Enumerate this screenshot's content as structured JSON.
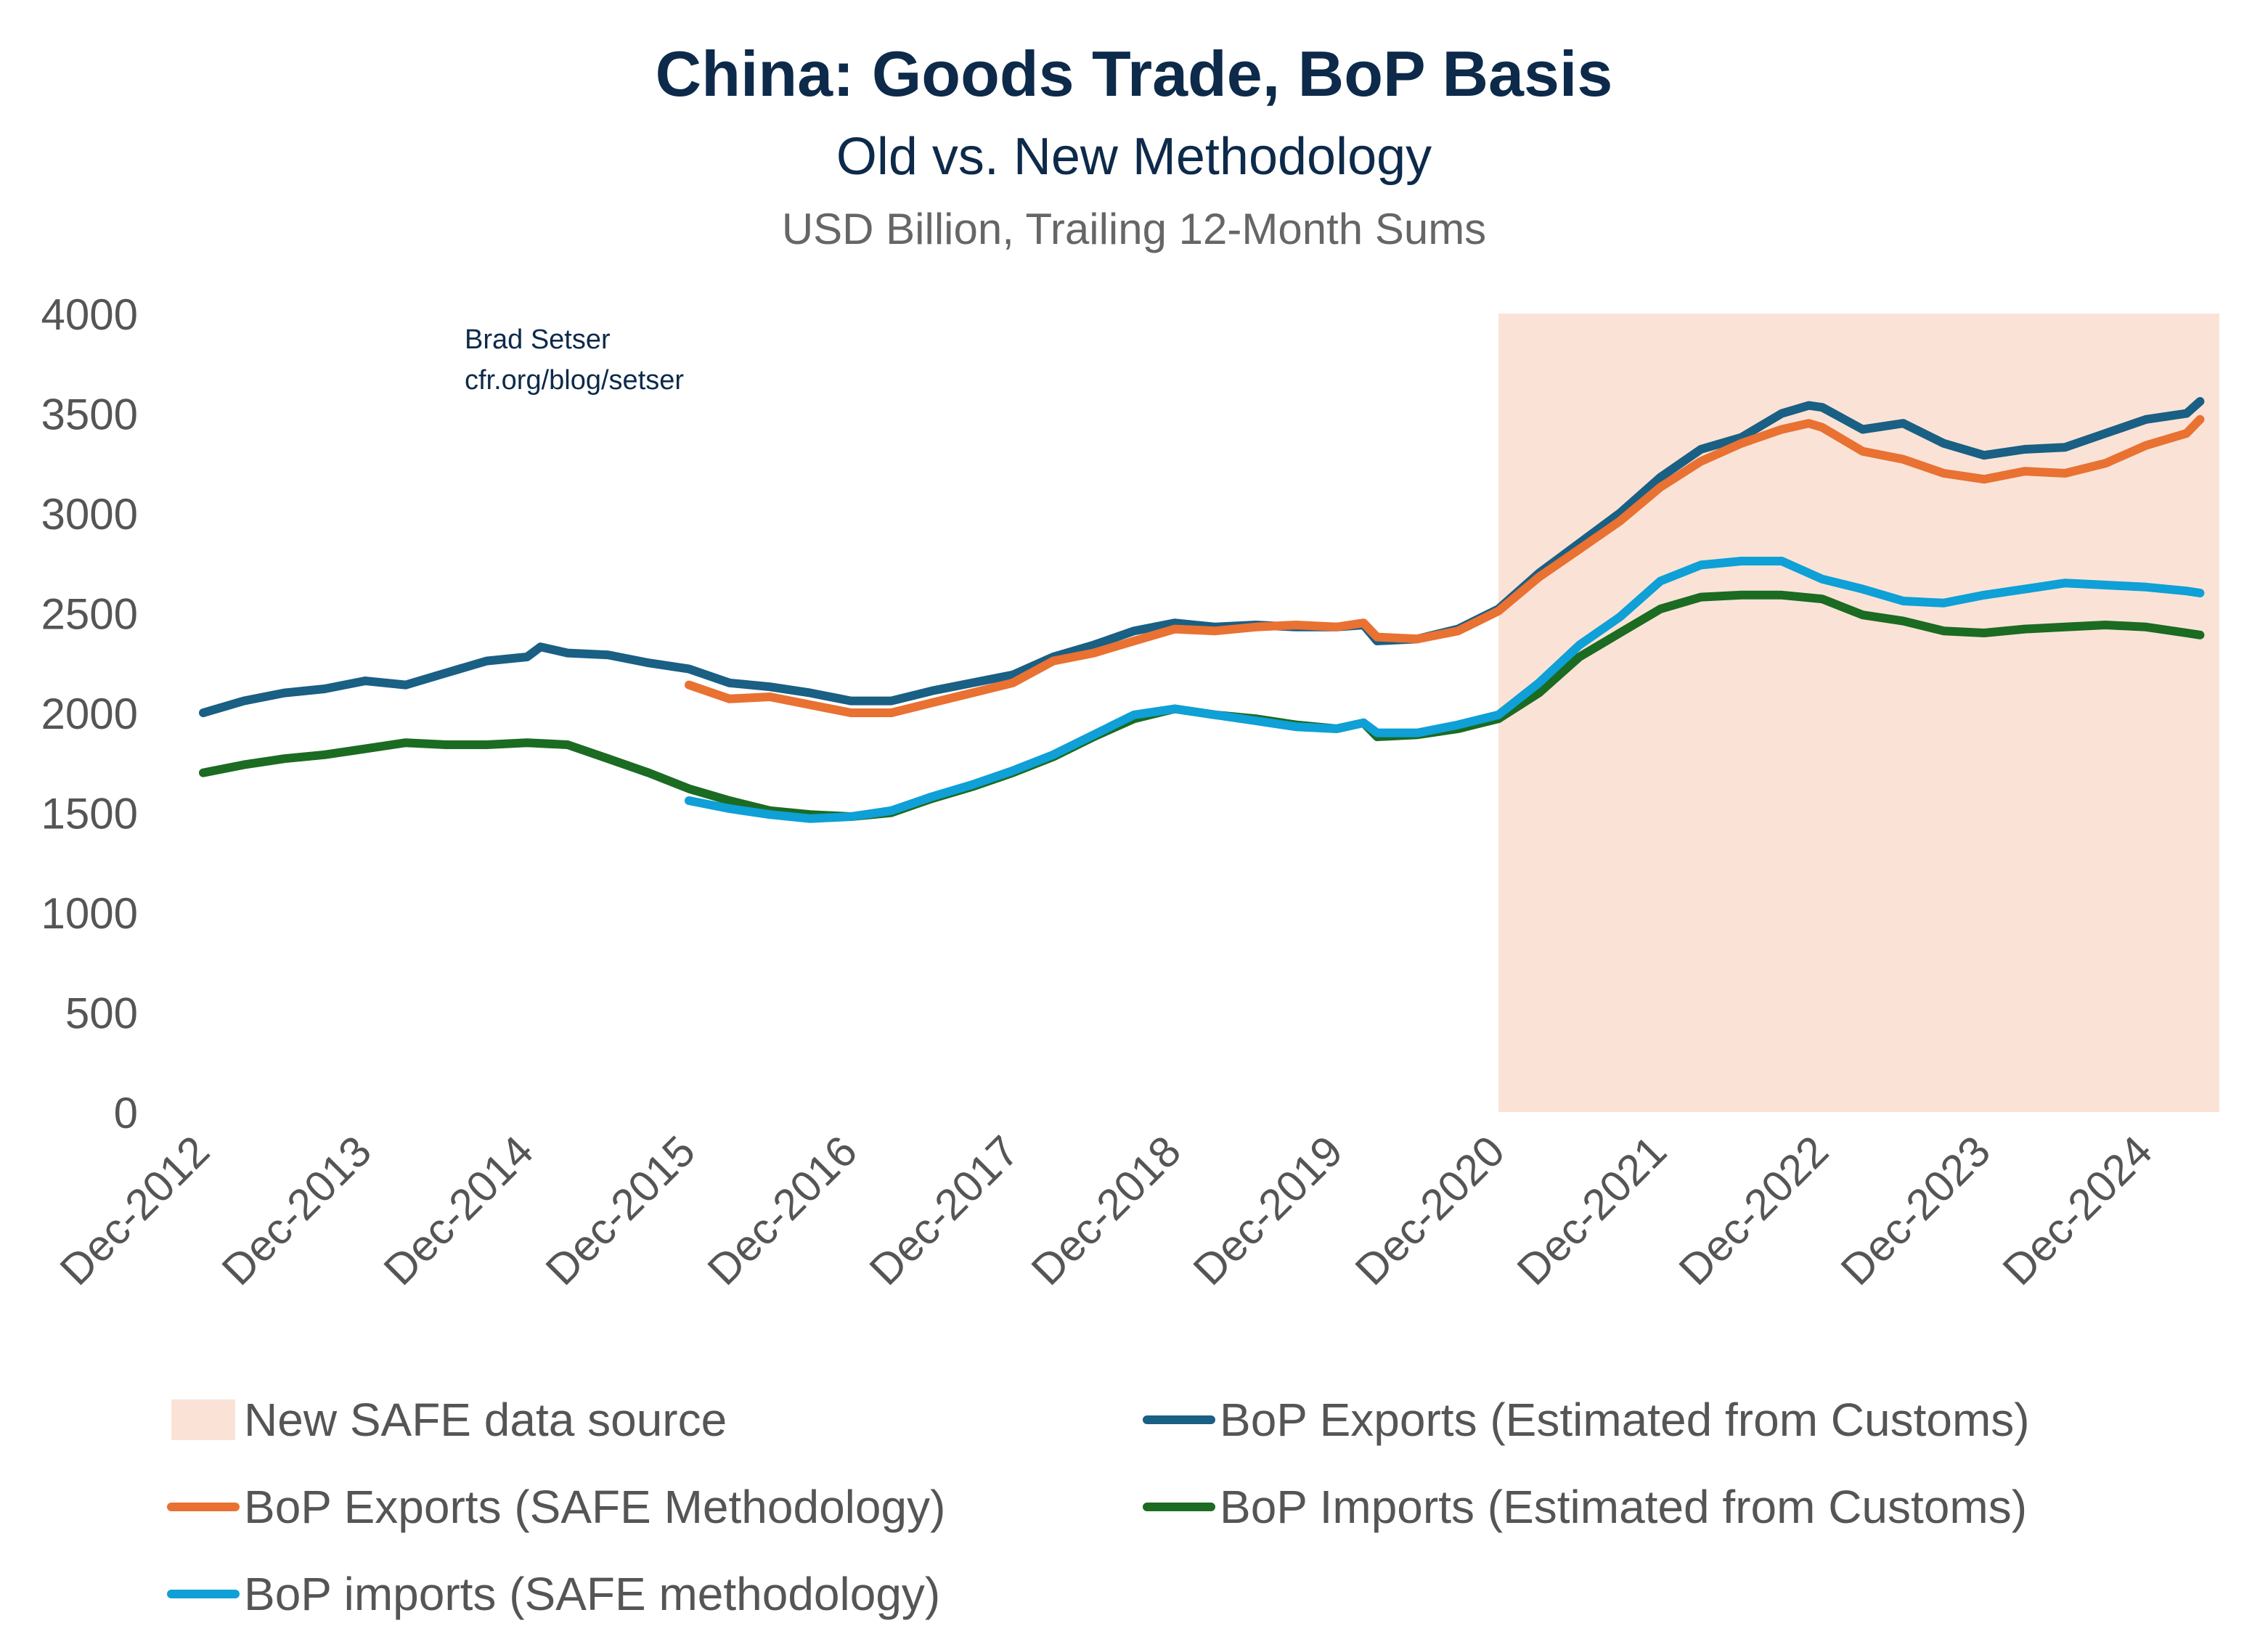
{
  "chart_data": {
    "type": "line",
    "title": "China: Goods Trade, BoP Basis",
    "subtitle": "Old vs. New Methodology",
    "units_label": "USD Billion, Trailing 12-Month Sums",
    "attribution": [
      "Brad Setser",
      "cfr.org/blog/setser"
    ],
    "ylim": [
      0,
      4000
    ],
    "y_ticks": [
      "0",
      "500",
      "1000",
      "1500",
      "2000",
      "2500",
      "3000",
      "3500",
      "4000"
    ],
    "x_ticks": [
      "Dec-2012",
      "Dec-2013",
      "Dec-2014",
      "Dec-2015",
      "Dec-2016",
      "Dec-2017",
      "Dec-2018",
      "Dec-2019",
      "Dec-2020",
      "Dec-2021",
      "Dec-2022",
      "Dec-2023",
      "Dec-2024"
    ],
    "grid": false,
    "legend_position": "bottom",
    "shaded_region": {
      "label": "New SAFE data source",
      "from": "2020-12",
      "to": "2025-05",
      "color": "#fae3d6"
    },
    "series": [
      {
        "name": "BoP Exports (Estimated from Customs)",
        "color": "#1a5f84",
        "x": [
          "2012-12",
          "2013-03",
          "2013-06",
          "2013-09",
          "2013-12",
          "2014-03",
          "2014-06",
          "2014-09",
          "2014-12",
          "2015-01",
          "2015-03",
          "2015-06",
          "2015-09",
          "2015-12",
          "2016-03",
          "2016-06",
          "2016-09",
          "2016-12",
          "2017-03",
          "2017-06",
          "2017-09",
          "2017-12",
          "2018-03",
          "2018-06",
          "2018-09",
          "2018-12",
          "2019-03",
          "2019-06",
          "2019-09",
          "2019-12",
          "2020-02",
          "2020-03",
          "2020-06",
          "2020-09",
          "2020-12",
          "2021-03",
          "2021-06",
          "2021-09",
          "2021-12",
          "2022-03",
          "2022-06",
          "2022-09",
          "2022-11",
          "2022-12",
          "2023-03",
          "2023-06",
          "2023-09",
          "2023-12",
          "2024-03",
          "2024-06",
          "2024-09",
          "2024-12",
          "2025-03",
          "2025-04"
        ],
        "values": [
          2000,
          2060,
          2100,
          2120,
          2160,
          2140,
          2200,
          2260,
          2280,
          2330,
          2300,
          2290,
          2250,
          2220,
          2150,
          2130,
          2100,
          2060,
          2060,
          2110,
          2150,
          2190,
          2280,
          2340,
          2410,
          2450,
          2430,
          2440,
          2430,
          2430,
          2440,
          2360,
          2370,
          2420,
          2520,
          2700,
          2850,
          3000,
          3180,
          3320,
          3380,
          3500,
          3540,
          3530,
          3420,
          3450,
          3350,
          3290,
          3320,
          3330,
          3400,
          3470,
          3500,
          3560
        ]
      },
      {
        "name": "BoP Exports (SAFE Methodology)",
        "color": "#e97132",
        "x": [
          "2015-12",
          "2016-03",
          "2016-06",
          "2016-09",
          "2016-12",
          "2017-03",
          "2017-06",
          "2017-09",
          "2017-12",
          "2018-03",
          "2018-06",
          "2018-09",
          "2018-12",
          "2019-03",
          "2019-06",
          "2019-09",
          "2019-12",
          "2020-02",
          "2020-03",
          "2020-06",
          "2020-09",
          "2020-12",
          "2021-03",
          "2021-06",
          "2021-09",
          "2021-12",
          "2022-03",
          "2022-06",
          "2022-09",
          "2022-11",
          "2022-12",
          "2023-03",
          "2023-06",
          "2023-09",
          "2023-12",
          "2024-03",
          "2024-06",
          "2024-09",
          "2024-12",
          "2025-03",
          "2025-04"
        ],
        "values": [
          2140,
          2070,
          2080,
          2040,
          2000,
          2000,
          2050,
          2100,
          2150,
          2260,
          2300,
          2360,
          2420,
          2410,
          2430,
          2440,
          2430,
          2450,
          2380,
          2370,
          2410,
          2510,
          2680,
          2820,
          2960,
          3130,
          3260,
          3350,
          3420,
          3450,
          3430,
          3310,
          3270,
          3200,
          3170,
          3210,
          3200,
          3250,
          3340,
          3400,
          3470
        ]
      },
      {
        "name": "BoP Imports (Estimated from Customs)",
        "color": "#1b6b22",
        "x": [
          "2012-12",
          "2013-03",
          "2013-06",
          "2013-09",
          "2013-12",
          "2014-03",
          "2014-06",
          "2014-09",
          "2014-12",
          "2015-03",
          "2015-06",
          "2015-09",
          "2015-12",
          "2016-03",
          "2016-06",
          "2016-09",
          "2016-12",
          "2017-03",
          "2017-06",
          "2017-09",
          "2017-12",
          "2018-03",
          "2018-06",
          "2018-09",
          "2018-12",
          "2019-03",
          "2019-06",
          "2019-09",
          "2019-12",
          "2020-02",
          "2020-03",
          "2020-06",
          "2020-09",
          "2020-12",
          "2021-03",
          "2021-06",
          "2021-09",
          "2021-12",
          "2022-03",
          "2022-06",
          "2022-09",
          "2022-12",
          "2023-03",
          "2023-06",
          "2023-09",
          "2023-12",
          "2024-03",
          "2024-06",
          "2024-09",
          "2024-12",
          "2025-03",
          "2025-04"
        ],
        "values": [
          1700,
          1740,
          1770,
          1790,
          1820,
          1850,
          1840,
          1840,
          1850,
          1840,
          1770,
          1700,
          1620,
          1560,
          1510,
          1490,
          1480,
          1500,
          1570,
          1630,
          1700,
          1780,
          1880,
          1970,
          2020,
          1990,
          1970,
          1940,
          1920,
          1950,
          1880,
          1890,
          1920,
          1970,
          2100,
          2280,
          2400,
          2520,
          2580,
          2590,
          2590,
          2570,
          2490,
          2460,
          2410,
          2400,
          2420,
          2430,
          2440,
          2430,
          2400,
          2390
        ]
      },
      {
        "name": "BoP imports (SAFE methodology)",
        "color": "#0ea0d6",
        "x": [
          "2015-12",
          "2016-03",
          "2016-06",
          "2016-09",
          "2016-12",
          "2017-03",
          "2017-06",
          "2017-09",
          "2017-12",
          "2018-03",
          "2018-06",
          "2018-09",
          "2018-12",
          "2019-03",
          "2019-06",
          "2019-09",
          "2019-12",
          "2020-02",
          "2020-03",
          "2020-06",
          "2020-09",
          "2020-12",
          "2021-03",
          "2021-06",
          "2021-09",
          "2021-12",
          "2022-03",
          "2022-06",
          "2022-09",
          "2022-12",
          "2023-03",
          "2023-06",
          "2023-09",
          "2023-12",
          "2024-03",
          "2024-06",
          "2024-09",
          "2024-12",
          "2025-03",
          "2025-04"
        ],
        "values": [
          1560,
          1520,
          1490,
          1470,
          1480,
          1510,
          1580,
          1640,
          1710,
          1790,
          1890,
          1990,
          2020,
          1990,
          1960,
          1930,
          1920,
          1950,
          1900,
          1900,
          1940,
          1990,
          2150,
          2340,
          2480,
          2660,
          2740,
          2760,
          2760,
          2670,
          2620,
          2560,
          2550,
          2590,
          2620,
          2650,
          2640,
          2630,
          2610,
          2600
        ]
      }
    ],
    "legend": [
      {
        "label": "New SAFE data source",
        "kind": "area",
        "color": "#fae3d6"
      },
      {
        "label": "BoP Exports (Estimated from Customs)",
        "kind": "line",
        "color": "#1a5f84"
      },
      {
        "label": "BoP Exports (SAFE Methodology)",
        "kind": "line",
        "color": "#e97132"
      },
      {
        "label": "BoP Imports (Estimated from Customs)",
        "kind": "line",
        "color": "#1b6b22"
      },
      {
        "label": "BoP imports (SAFE methodology)",
        "kind": "line",
        "color": "#0ea0d6"
      }
    ]
  }
}
